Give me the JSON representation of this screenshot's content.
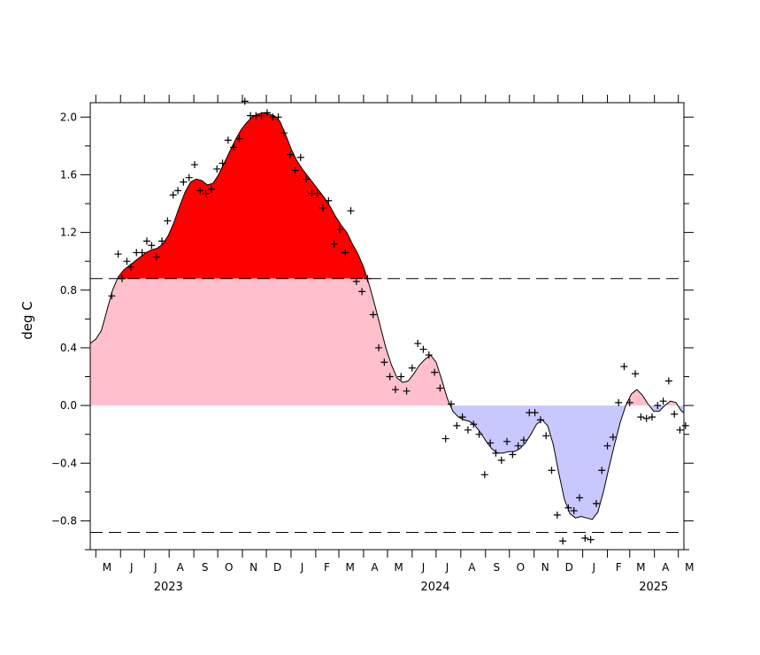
{
  "chart_data": {
    "type": "area",
    "title": "",
    "ylabel": "deg C",
    "xlabel": "",
    "ylim": [
      -1.0,
      2.1
    ],
    "xlim": [
      "2023-04-24",
      "2025-05-08"
    ],
    "threshold_lines": [
      0.88,
      -0.88
    ],
    "colors": {
      "above_threshold_fill": "#ff0000",
      "positive_fill": "#ffc0cb",
      "negative_fill": "#c8c8ff",
      "line": "#000000",
      "markers": "#000000"
    },
    "yticks": [
      {
        "value": -0.8,
        "label": "−0.8"
      },
      {
        "value": -0.4,
        "label": "−0.4"
      },
      {
        "value": 0.0,
        "label": "0.0"
      },
      {
        "value": 0.4,
        "label": "0.4"
      },
      {
        "value": 0.8,
        "label": "0.8"
      },
      {
        "value": 1.2,
        "label": "1.2"
      },
      {
        "value": 1.6,
        "label": "1.6"
      },
      {
        "value": 2.0,
        "label": "2.0"
      }
    ],
    "months": [
      {
        "date": "2023-05-15",
        "label": "M"
      },
      {
        "date": "2023-06-15",
        "label": "J"
      },
      {
        "date": "2023-07-15",
        "label": "J"
      },
      {
        "date": "2023-08-15",
        "label": "A"
      },
      {
        "date": "2023-09-15",
        "label": "S"
      },
      {
        "date": "2023-10-15",
        "label": "O"
      },
      {
        "date": "2023-11-15",
        "label": "N"
      },
      {
        "date": "2023-12-15",
        "label": "D"
      },
      {
        "date": "2024-01-15",
        "label": "J"
      },
      {
        "date": "2024-02-15",
        "label": "F"
      },
      {
        "date": "2024-03-15",
        "label": "M"
      },
      {
        "date": "2024-04-15",
        "label": "A"
      },
      {
        "date": "2024-05-15",
        "label": "M"
      },
      {
        "date": "2024-06-15",
        "label": "J"
      },
      {
        "date": "2024-07-15",
        "label": "J"
      },
      {
        "date": "2024-08-15",
        "label": "A"
      },
      {
        "date": "2024-09-15",
        "label": "S"
      },
      {
        "date": "2024-10-15",
        "label": "O"
      },
      {
        "date": "2024-11-15",
        "label": "N"
      },
      {
        "date": "2024-12-15",
        "label": "D"
      },
      {
        "date": "2025-01-15",
        "label": "J"
      },
      {
        "date": "2025-02-15",
        "label": "F"
      },
      {
        "date": "2025-03-15",
        "label": "M"
      },
      {
        "date": "2025-04-15",
        "label": "A"
      },
      {
        "date": "2025-05-15",
        "label": "M"
      }
    ],
    "years": [
      {
        "date": "2023-07-31",
        "label": "2023"
      },
      {
        "date": "2024-06-30",
        "label": "2024"
      },
      {
        "date": "2025-03-31",
        "label": "2025"
      }
    ],
    "smoothed": [
      {
        "x": "2023-04-24",
        "y": 0.43
      },
      {
        "x": "2023-05-01",
        "y": 0.46
      },
      {
        "x": "2023-05-08",
        "y": 0.52
      },
      {
        "x": "2023-05-15",
        "y": 0.66
      },
      {
        "x": "2023-05-22",
        "y": 0.8
      },
      {
        "x": "2023-05-29",
        "y": 0.89
      },
      {
        "x": "2023-06-05",
        "y": 0.94
      },
      {
        "x": "2023-06-12",
        "y": 0.97
      },
      {
        "x": "2023-06-19",
        "y": 1.0
      },
      {
        "x": "2023-06-26",
        "y": 1.03
      },
      {
        "x": "2023-07-03",
        "y": 1.06
      },
      {
        "x": "2023-07-10",
        "y": 1.08
      },
      {
        "x": "2023-07-17",
        "y": 1.09
      },
      {
        "x": "2023-07-24",
        "y": 1.12
      },
      {
        "x": "2023-07-31",
        "y": 1.18
      },
      {
        "x": "2023-08-07",
        "y": 1.27
      },
      {
        "x": "2023-08-14",
        "y": 1.38
      },
      {
        "x": "2023-08-21",
        "y": 1.48
      },
      {
        "x": "2023-08-28",
        "y": 1.55
      },
      {
        "x": "2023-09-04",
        "y": 1.57
      },
      {
        "x": "2023-09-11",
        "y": 1.56
      },
      {
        "x": "2023-09-18",
        "y": 1.53
      },
      {
        "x": "2023-09-25",
        "y": 1.54
      },
      {
        "x": "2023-10-02",
        "y": 1.6
      },
      {
        "x": "2023-10-09",
        "y": 1.68
      },
      {
        "x": "2023-10-16",
        "y": 1.76
      },
      {
        "x": "2023-10-23",
        "y": 1.84
      },
      {
        "x": "2023-10-30",
        "y": 1.91
      },
      {
        "x": "2023-11-06",
        "y": 1.96
      },
      {
        "x": "2023-11-13",
        "y": 2.0
      },
      {
        "x": "2023-11-20",
        "y": 2.02
      },
      {
        "x": "2023-11-27",
        "y": 2.03
      },
      {
        "x": "2023-12-04",
        "y": 2.02
      },
      {
        "x": "2023-12-11",
        "y": 2.01
      },
      {
        "x": "2023-12-18",
        "y": 1.97
      },
      {
        "x": "2023-12-25",
        "y": 1.88
      },
      {
        "x": "2024-01-01",
        "y": 1.78
      },
      {
        "x": "2024-01-08",
        "y": 1.7
      },
      {
        "x": "2024-01-15",
        "y": 1.64
      },
      {
        "x": "2024-01-22",
        "y": 1.59
      },
      {
        "x": "2024-01-29",
        "y": 1.54
      },
      {
        "x": "2024-02-05",
        "y": 1.49
      },
      {
        "x": "2024-02-12",
        "y": 1.44
      },
      {
        "x": "2024-02-19",
        "y": 1.38
      },
      {
        "x": "2024-02-26",
        "y": 1.31
      },
      {
        "x": "2024-03-04",
        "y": 1.25
      },
      {
        "x": "2024-03-11",
        "y": 1.2
      },
      {
        "x": "2024-03-18",
        "y": 1.12
      },
      {
        "x": "2024-03-25",
        "y": 1.05
      },
      {
        "x": "2024-04-01",
        "y": 0.96
      },
      {
        "x": "2024-04-08",
        "y": 0.84
      },
      {
        "x": "2024-04-15",
        "y": 0.7
      },
      {
        "x": "2024-04-22",
        "y": 0.55
      },
      {
        "x": "2024-04-29",
        "y": 0.4
      },
      {
        "x": "2024-05-06",
        "y": 0.28
      },
      {
        "x": "2024-05-13",
        "y": 0.19
      },
      {
        "x": "2024-05-20",
        "y": 0.16
      },
      {
        "x": "2024-05-27",
        "y": 0.17
      },
      {
        "x": "2024-06-03",
        "y": 0.22
      },
      {
        "x": "2024-06-10",
        "y": 0.28
      },
      {
        "x": "2024-06-17",
        "y": 0.32
      },
      {
        "x": "2024-06-24",
        "y": 0.35
      },
      {
        "x": "2024-07-01",
        "y": 0.3
      },
      {
        "x": "2024-07-08",
        "y": 0.18
      },
      {
        "x": "2024-07-15",
        "y": 0.05
      },
      {
        "x": "2024-07-22",
        "y": -0.04
      },
      {
        "x": "2024-07-29",
        "y": -0.08
      },
      {
        "x": "2024-08-05",
        "y": -0.1
      },
      {
        "x": "2024-08-12",
        "y": -0.11
      },
      {
        "x": "2024-08-19",
        "y": -0.14
      },
      {
        "x": "2024-08-26",
        "y": -0.19
      },
      {
        "x": "2024-09-02",
        "y": -0.25
      },
      {
        "x": "2024-09-09",
        "y": -0.3
      },
      {
        "x": "2024-09-16",
        "y": -0.33
      },
      {
        "x": "2024-09-23",
        "y": -0.33
      },
      {
        "x": "2024-09-30",
        "y": -0.32
      },
      {
        "x": "2024-10-07",
        "y": -0.32
      },
      {
        "x": "2024-10-14",
        "y": -0.3
      },
      {
        "x": "2024-10-21",
        "y": -0.26
      },
      {
        "x": "2024-10-28",
        "y": -0.2
      },
      {
        "x": "2024-11-04",
        "y": -0.13
      },
      {
        "x": "2024-11-11",
        "y": -0.1
      },
      {
        "x": "2024-11-18",
        "y": -0.14
      },
      {
        "x": "2024-11-25",
        "y": -0.27
      },
      {
        "x": "2024-12-02",
        "y": -0.47
      },
      {
        "x": "2024-12-09",
        "y": -0.65
      },
      {
        "x": "2024-12-16",
        "y": -0.75
      },
      {
        "x": "2024-12-23",
        "y": -0.78
      },
      {
        "x": "2024-12-30",
        "y": -0.77
      },
      {
        "x": "2025-01-06",
        "y": -0.78
      },
      {
        "x": "2025-01-13",
        "y": -0.79
      },
      {
        "x": "2025-01-20",
        "y": -0.74
      },
      {
        "x": "2025-01-27",
        "y": -0.6
      },
      {
        "x": "2025-02-03",
        "y": -0.43
      },
      {
        "x": "2025-02-10",
        "y": -0.27
      },
      {
        "x": "2025-02-17",
        "y": -0.12
      },
      {
        "x": "2025-02-24",
        "y": 0.0
      },
      {
        "x": "2025-03-03",
        "y": 0.08
      },
      {
        "x": "2025-03-10",
        "y": 0.11
      },
      {
        "x": "2025-03-17",
        "y": 0.07
      },
      {
        "x": "2025-03-24",
        "y": 0.01
      },
      {
        "x": "2025-03-31",
        "y": -0.04
      },
      {
        "x": "2025-04-07",
        "y": -0.04
      },
      {
        "x": "2025-04-14",
        "y": 0.0
      },
      {
        "x": "2025-04-21",
        "y": 0.03
      },
      {
        "x": "2025-04-28",
        "y": 0.02
      },
      {
        "x": "2025-05-05",
        "y": -0.04
      },
      {
        "x": "2025-05-08",
        "y": -0.05
      }
    ],
    "weekly": [
      {
        "x": "2023-05-21",
        "y": 0.76
      },
      {
        "x": "2023-05-29",
        "y": 1.05
      },
      {
        "x": "2023-06-03",
        "y": 0.88
      },
      {
        "x": "2023-06-09",
        "y": 1.0
      },
      {
        "x": "2023-06-14",
        "y": 0.96
      },
      {
        "x": "2023-06-21",
        "y": 1.06
      },
      {
        "x": "2023-06-28",
        "y": 1.06
      },
      {
        "x": "2023-07-04",
        "y": 1.14
      },
      {
        "x": "2023-07-10",
        "y": 1.11
      },
      {
        "x": "2023-07-16",
        "y": 1.03
      },
      {
        "x": "2023-07-23",
        "y": 1.14
      },
      {
        "x": "2023-07-30",
        "y": 1.28
      },
      {
        "x": "2023-08-06",
        "y": 1.46
      },
      {
        "x": "2023-08-12",
        "y": 1.49
      },
      {
        "x": "2023-08-19",
        "y": 1.55
      },
      {
        "x": "2023-08-26",
        "y": 1.58
      },
      {
        "x": "2023-09-02",
        "y": 1.67
      },
      {
        "x": "2023-09-09",
        "y": 1.49
      },
      {
        "x": "2023-09-16",
        "y": 1.47
      },
      {
        "x": "2023-09-23",
        "y": 1.5
      },
      {
        "x": "2023-09-30",
        "y": 1.64
      },
      {
        "x": "2023-10-07",
        "y": 1.68
      },
      {
        "x": "2023-10-14",
        "y": 1.84
      },
      {
        "x": "2023-10-21",
        "y": 1.79
      },
      {
        "x": "2023-10-28",
        "y": 1.85
      },
      {
        "x": "2023-11-04",
        "y": 2.11
      },
      {
        "x": "2023-11-11",
        "y": 2.01
      },
      {
        "x": "2023-11-18",
        "y": 2.01
      },
      {
        "x": "2023-11-25",
        "y": 2.01
      },
      {
        "x": "2023-12-02",
        "y": 2.03
      },
      {
        "x": "2023-12-09",
        "y": 2.0
      },
      {
        "x": "2023-12-16",
        "y": 2.0
      },
      {
        "x": "2023-12-23",
        "y": 1.89
      },
      {
        "x": "2023-12-31",
        "y": 1.74
      },
      {
        "x": "2024-01-06",
        "y": 1.63
      },
      {
        "x": "2024-01-13",
        "y": 1.72
      },
      {
        "x": "2024-01-20",
        "y": 1.57
      },
      {
        "x": "2024-01-27",
        "y": 1.47
      },
      {
        "x": "2024-02-03",
        "y": 1.47
      },
      {
        "x": "2024-02-10",
        "y": 1.37
      },
      {
        "x": "2024-02-17",
        "y": 1.42
      },
      {
        "x": "2024-02-24",
        "y": 1.12
      },
      {
        "x": "2024-03-02",
        "y": 1.22
      },
      {
        "x": "2024-03-09",
        "y": 1.06
      },
      {
        "x": "2024-03-16",
        "y": 1.35
      },
      {
        "x": "2024-03-23",
        "y": 0.86
      },
      {
        "x": "2024-03-30",
        "y": 0.79
      },
      {
        "x": "2024-04-06",
        "y": 0.88
      },
      {
        "x": "2024-04-13",
        "y": 0.63
      },
      {
        "x": "2024-04-20",
        "y": 0.4
      },
      {
        "x": "2024-04-27",
        "y": 0.3
      },
      {
        "x": "2024-05-04",
        "y": 0.2
      },
      {
        "x": "2024-05-11",
        "y": 0.11
      },
      {
        "x": "2024-05-18",
        "y": 0.2
      },
      {
        "x": "2024-05-25",
        "y": 0.1
      },
      {
        "x": "2024-06-01",
        "y": 0.26
      },
      {
        "x": "2024-06-08",
        "y": 0.43
      },
      {
        "x": "2024-06-15",
        "y": 0.39
      },
      {
        "x": "2024-06-22",
        "y": 0.35
      },
      {
        "x": "2024-06-29",
        "y": 0.23
      },
      {
        "x": "2024-07-06",
        "y": 0.12
      },
      {
        "x": "2024-07-13",
        "y": -0.23
      },
      {
        "x": "2024-07-20",
        "y": 0.01
      },
      {
        "x": "2024-07-27",
        "y": -0.14
      },
      {
        "x": "2024-08-03",
        "y": -0.08
      },
      {
        "x": "2024-08-10",
        "y": -0.17
      },
      {
        "x": "2024-08-17",
        "y": -0.13
      },
      {
        "x": "2024-08-24",
        "y": -0.2
      },
      {
        "x": "2024-08-31",
        "y": -0.48
      },
      {
        "x": "2024-09-07",
        "y": -0.26
      },
      {
        "x": "2024-09-14",
        "y": -0.33
      },
      {
        "x": "2024-09-21",
        "y": -0.38
      },
      {
        "x": "2024-09-28",
        "y": -0.25
      },
      {
        "x": "2024-10-05",
        "y": -0.34
      },
      {
        "x": "2024-10-12",
        "y": -0.28
      },
      {
        "x": "2024-10-19",
        "y": -0.24
      },
      {
        "x": "2024-10-26",
        "y": -0.05
      },
      {
        "x": "2024-11-02",
        "y": -0.05
      },
      {
        "x": "2024-11-09",
        "y": -0.1
      },
      {
        "x": "2024-11-16",
        "y": -0.21
      },
      {
        "x": "2024-11-23",
        "y": -0.45
      },
      {
        "x": "2024-11-30",
        "y": -0.76
      },
      {
        "x": "2024-12-07",
        "y": -0.94
      },
      {
        "x": "2024-12-14",
        "y": -0.71
      },
      {
        "x": "2024-12-21",
        "y": -0.73
      },
      {
        "x": "2024-12-28",
        "y": -0.64
      },
      {
        "x": "2025-01-04",
        "y": -0.92
      },
      {
        "x": "2025-01-11",
        "y": -0.93
      },
      {
        "x": "2025-01-18",
        "y": -0.68
      },
      {
        "x": "2025-01-25",
        "y": -0.45
      },
      {
        "x": "2025-02-01",
        "y": -0.28
      },
      {
        "x": "2025-02-08",
        "y": -0.22
      },
      {
        "x": "2025-02-15",
        "y": 0.02
      },
      {
        "x": "2025-02-22",
        "y": 0.27
      },
      {
        "x": "2025-03-01",
        "y": 0.02
      },
      {
        "x": "2025-03-08",
        "y": 0.22
      },
      {
        "x": "2025-03-15",
        "y": -0.08
      },
      {
        "x": "2025-03-22",
        "y": -0.09
      },
      {
        "x": "2025-03-29",
        "y": -0.08
      },
      {
        "x": "2025-04-05",
        "y": 0.0
      },
      {
        "x": "2025-04-12",
        "y": 0.03
      },
      {
        "x": "2025-04-19",
        "y": 0.17
      },
      {
        "x": "2025-04-26",
        "y": -0.06
      },
      {
        "x": "2025-05-03",
        "y": -0.17
      },
      {
        "x": "2025-05-10",
        "y": -0.14
      }
    ]
  }
}
